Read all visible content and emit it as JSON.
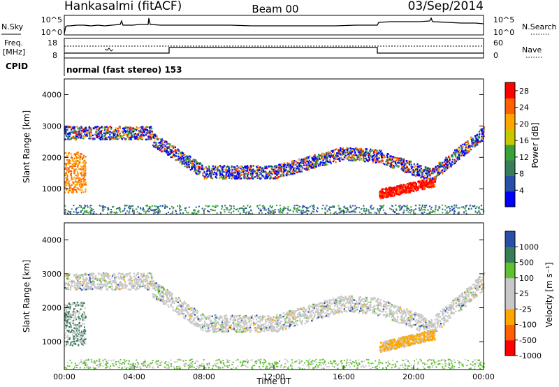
{
  "header": {
    "station": "Hankasalmi (fitACF)",
    "beam": "Beam 00",
    "date": "03/Sep/2014"
  },
  "noise_panel": {
    "left_label": "N.Sky",
    "right_label": "N.Search",
    "left_ticks": [
      "10^5",
      "10^0"
    ],
    "right_ticks": [
      "10^5",
      "10^0"
    ]
  },
  "freq_panel": {
    "left_label_line1": "Freq.",
    "left_label_line2": "[MHz]",
    "right_label": "Nave",
    "left_ticks": [
      "18",
      "8"
    ],
    "right_ticks": [
      "60",
      "0"
    ]
  },
  "cpid_panel": {
    "label": "CPID",
    "text": "normal (fast stereo) 153"
  },
  "colors": {
    "power_scale": [
      "#0000ff",
      "#2a4fa8",
      "#3a7d5a",
      "#3aa03a",
      "#c8c800",
      "#ffa500",
      "#ff6000",
      "#ff0000"
    ],
    "velocity_scale": [
      "#ff0000",
      "#ff6000",
      "#ffa500",
      "#c8c8c8",
      "#c8c8c8",
      "#60c030",
      "#3a7d5a",
      "#2a4fa8"
    ]
  },
  "chart_data": [
    {
      "type": "heatmap",
      "title": "",
      "ylabel": "Slant Range [km]",
      "xlabel": "",
      "ylim": [
        180,
        4500
      ],
      "xlim": [
        0,
        24
      ],
      "yticks": [
        "1000",
        "2000",
        "3000",
        "4000"
      ],
      "xticks": [],
      "colorbar": {
        "label": "Power [dB]",
        "ticks": [
          "4",
          "8",
          "12",
          "16",
          "20",
          "24",
          "28"
        ],
        "range": [
          0,
          30
        ]
      }
    },
    {
      "type": "heatmap",
      "title": "",
      "ylabel": "Slant Range [km]",
      "xlabel": "Time UT",
      "ylim": [
        180,
        4500
      ],
      "xlim": [
        0,
        24
      ],
      "yticks": [
        "1000",
        "2000",
        "3000",
        "4000"
      ],
      "xticks": [
        "00:00",
        "04:00",
        "08:00",
        "12:00",
        "16:00",
        "20:00",
        "00:00"
      ],
      "colorbar": {
        "label": "Velocity [m s⁻¹]",
        "ticks": [
          "1000",
          "500",
          "100",
          "25",
          "-25",
          "-100",
          "-500",
          "-1000"
        ]
      }
    }
  ]
}
